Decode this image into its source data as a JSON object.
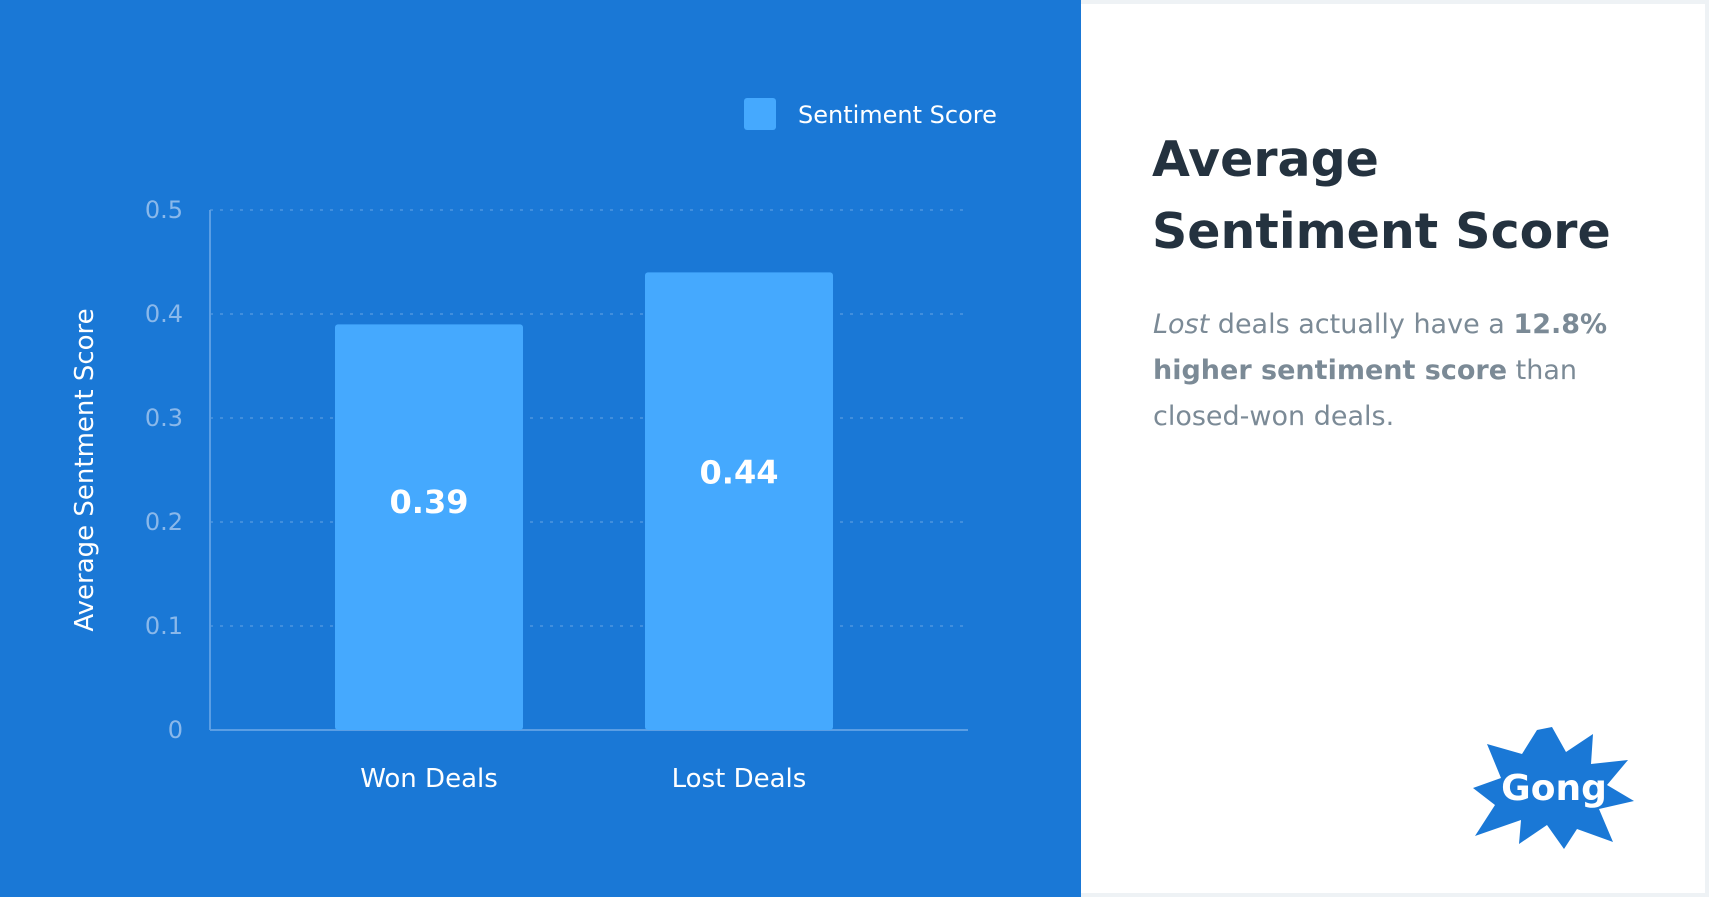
{
  "chart_data": {
    "type": "bar",
    "categories": [
      "Won Deals",
      "Lost Deals"
    ],
    "series": [
      {
        "name": "Sentiment Score",
        "values": [
          0.39,
          0.44
        ],
        "color": "#45a9fe"
      }
    ],
    "value_labels": [
      "0.39",
      "0.44"
    ],
    "ylabel": "Average Sentment Score",
    "ylim": [
      0,
      0.5
    ],
    "yticks": [
      0,
      0.1,
      0.2,
      0.3,
      0.4,
      0.5
    ],
    "ytick_labels": [
      "0",
      "0.1",
      "0.2",
      "0.3",
      "0.4",
      "0.5"
    ],
    "grid": true,
    "legend_position": "top-right"
  },
  "colors": {
    "chart_background": "#1a78d6",
    "bar": "#45a9fe",
    "headline": "#24323f",
    "body_text": "#7b8a96",
    "logo": "#1a78d6"
  },
  "info": {
    "headline_line1": "Average",
    "headline_line2": "Sentiment Score",
    "description": {
      "italic": "Lost",
      "part1": " deals actually have a ",
      "bold": "12.8% higher sentiment score",
      "part2": " than closed-won deals."
    }
  },
  "logo": {
    "text": "Gong",
    "icon": "starburst-logo"
  }
}
